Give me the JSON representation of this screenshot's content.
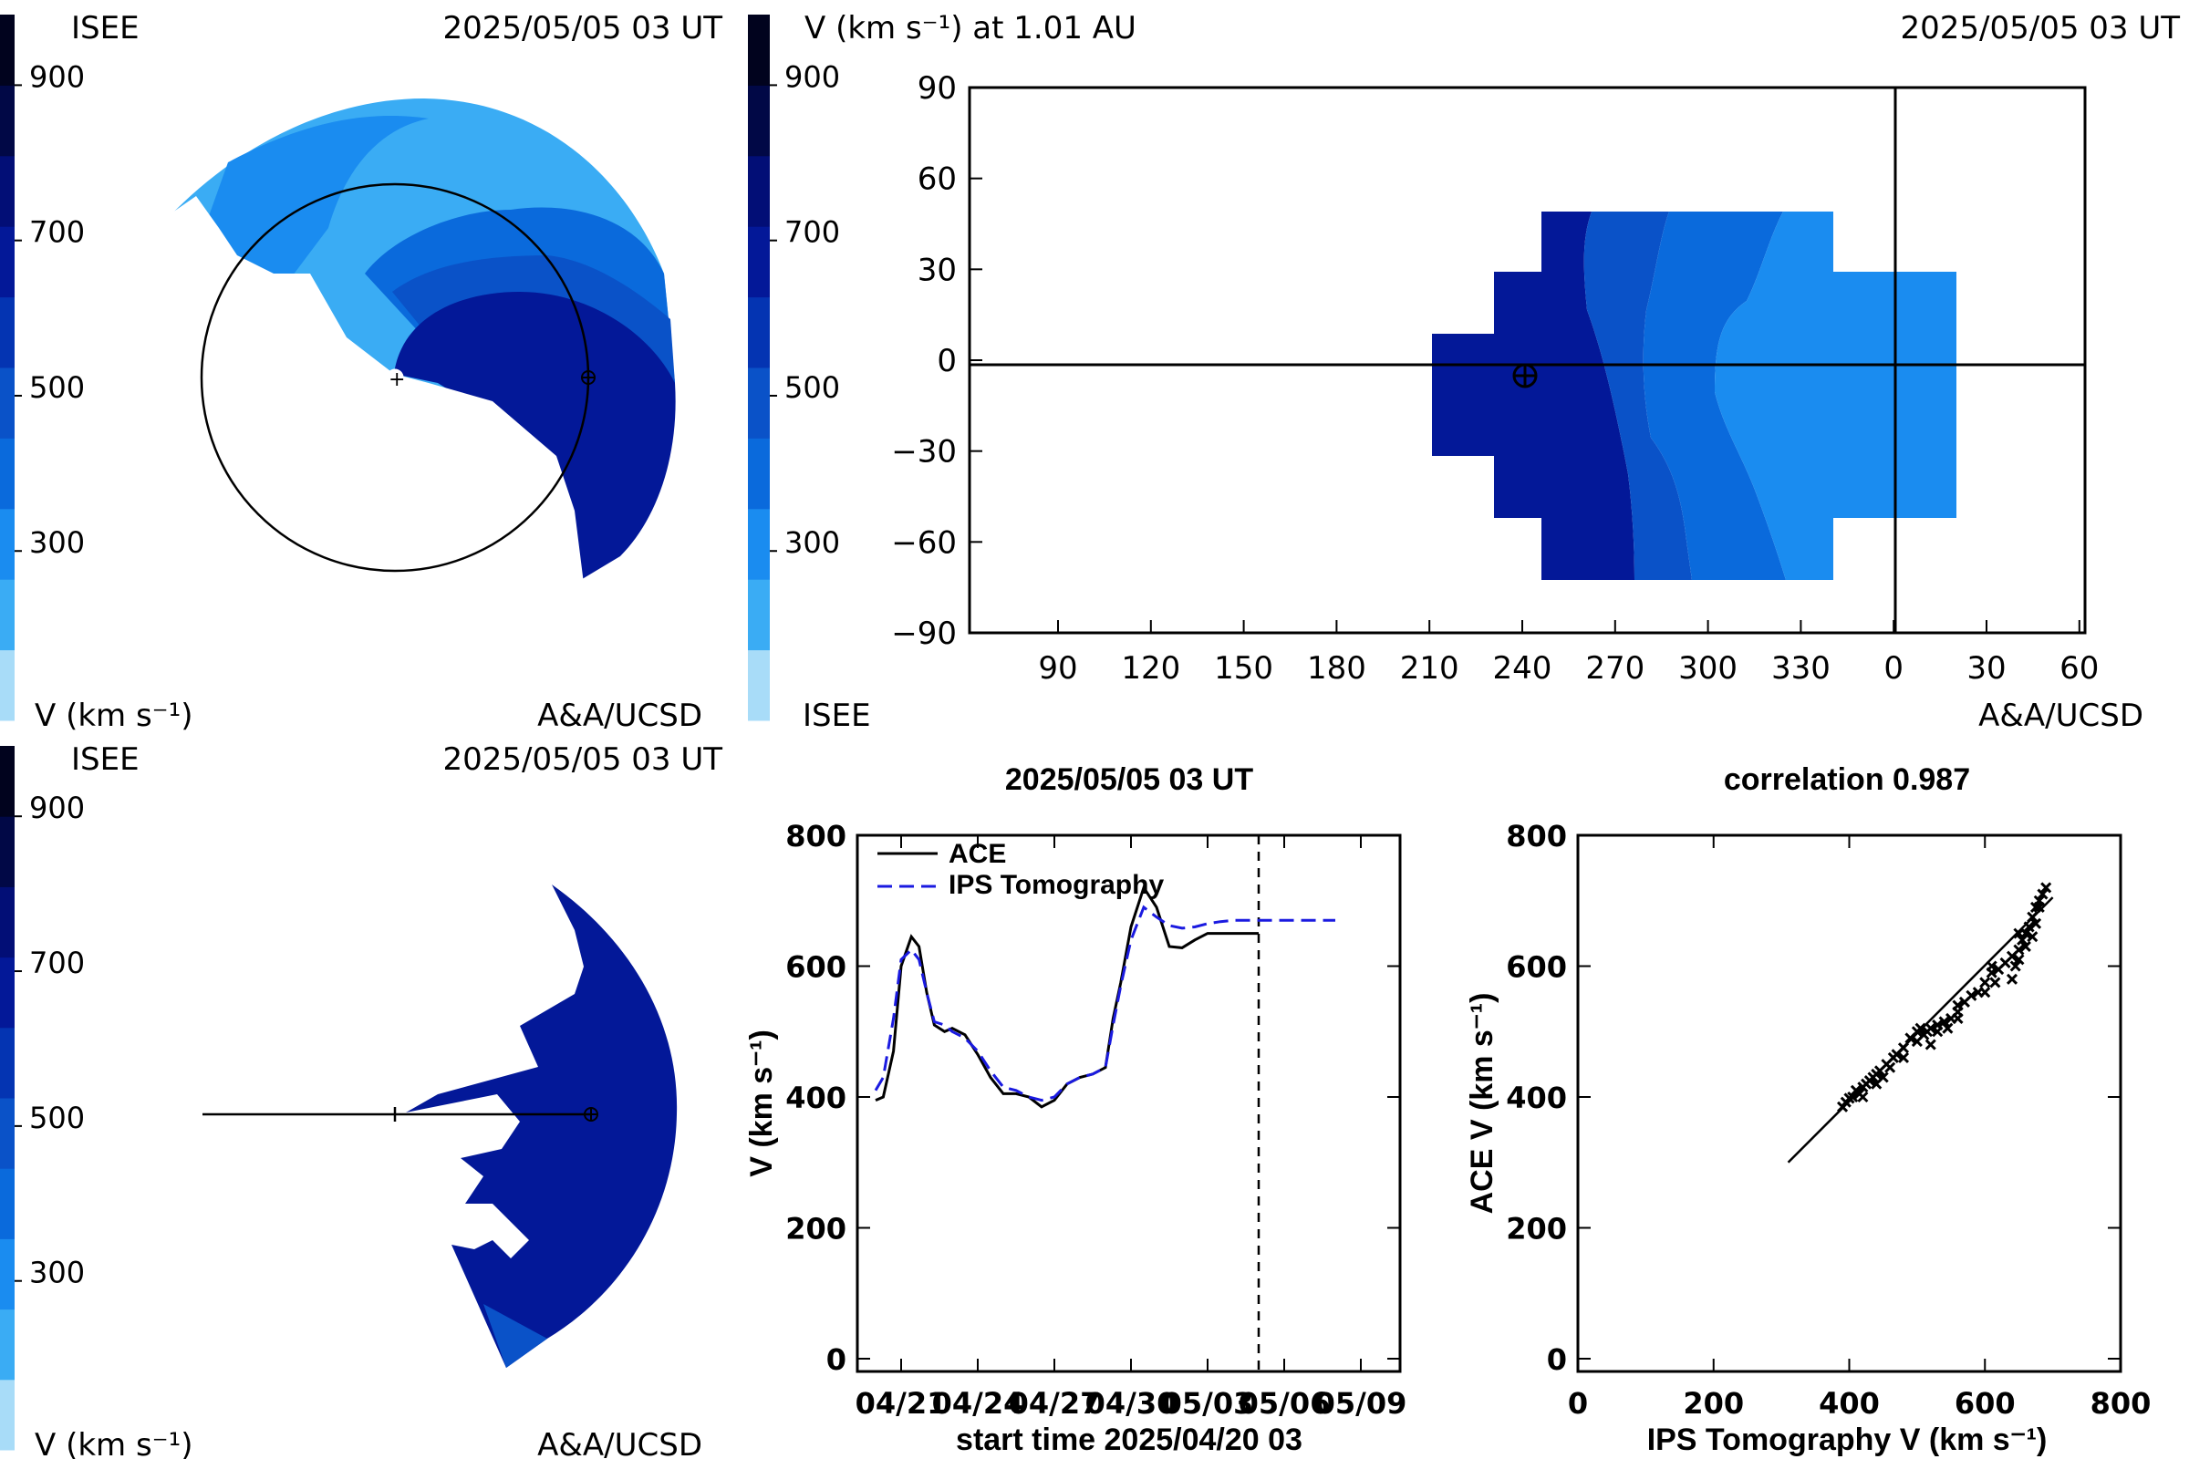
{
  "colorbar": {
    "ticks": [
      "900",
      "700",
      "500",
      "300"
    ],
    "colors": [
      "#a8dcf8",
      "#3aacf4",
      "#1a8cf0",
      "#0a6adc",
      "#0a52c8",
      "#0434b2",
      "#031898",
      "#020e76",
      "#010846",
      "#01031e"
    ]
  },
  "panel_tl": {
    "left_label": "ISEE",
    "datetime": "2025/05/05 03 UT",
    "unit_label": "V (km s⁻¹)",
    "credit": "A&A/UCSD"
  },
  "panel_bl": {
    "left_label": "ISEE",
    "datetime": "2025/05/05 03 UT",
    "unit_label": "V (km s⁻¹)",
    "credit": "A&A/UCSD"
  },
  "panel_map": {
    "title": "V (km s⁻¹) at 1.01 AU",
    "datetime": "2025/05/05 03 UT",
    "bottom_left": "ISEE",
    "credit": "A&A/UCSD",
    "y_ticks": [
      "90",
      "60",
      "30",
      "0",
      "−30",
      "−60",
      "−90"
    ],
    "x_ticks": [
      "90",
      "120",
      "150",
      "180",
      "210",
      "240",
      "270",
      "300",
      "330",
      "0",
      "30",
      "60"
    ]
  },
  "chart_data": [
    {
      "type": "line",
      "title": "2025/05/05 03 UT",
      "xlabel": "start time 2025/04/20 03",
      "ylabel": "V (km s⁻¹)",
      "x_ticks": [
        "04/21",
        "04/24",
        "04/27",
        "04/30",
        "05/03",
        "05/06",
        "05/09"
      ],
      "y_ticks": [
        "0",
        "200",
        "400",
        "600",
        "800"
      ],
      "ylim": [
        0,
        800
      ],
      "xlim_days": [
        0,
        20
      ],
      "current_time_day": 15.0,
      "legend": [
        "ACE",
        "IPS Tomography"
      ],
      "series": [
        {
          "name": "ACE",
          "x": [
            0,
            0.3,
            0.7,
            1.0,
            1.4,
            1.7,
            2.0,
            2.3,
            2.7,
            3.0,
            3.5,
            4.0,
            4.5,
            5.0,
            5.5,
            6.0,
            6.5,
            7.0,
            7.5,
            8.0,
            8.5,
            9.0,
            9.3,
            9.6,
            10.0,
            10.5,
            11.0,
            11.5,
            12.0,
            12.5,
            13.0,
            13.3,
            13.6,
            14.0,
            14.3,
            14.6,
            15.0
          ],
          "y": [
            395,
            400,
            470,
            600,
            645,
            630,
            560,
            510,
            500,
            505,
            495,
            465,
            430,
            405,
            405,
            400,
            385,
            395,
            420,
            430,
            435,
            445,
            520,
            575,
            660,
            720,
            690,
            630,
            628,
            640,
            650,
            650,
            650,
            650,
            650,
            650,
            650
          ]
        },
        {
          "name": "IPS Tomography",
          "x": [
            0,
            0.3,
            0.7,
            1.0,
            1.4,
            1.7,
            2.0,
            2.3,
            2.7,
            3.0,
            3.5,
            4.0,
            4.5,
            5.0,
            5.5,
            6.0,
            6.5,
            7.0,
            7.5,
            8.0,
            8.5,
            9.0,
            9.3,
            9.6,
            10.0,
            10.5,
            11.0,
            11.5,
            12.0,
            12.5,
            13.0,
            13.5,
            14.0,
            14.5,
            15.0,
            15.5,
            16.0,
            16.5,
            17.0,
            17.5,
            18.0
          ],
          "y": [
            410,
            430,
            520,
            610,
            625,
            610,
            560,
            515,
            510,
            500,
            490,
            470,
            440,
            415,
            410,
            400,
            395,
            400,
            420,
            430,
            435,
            445,
            510,
            570,
            640,
            690,
            675,
            662,
            658,
            660,
            665,
            668,
            670,
            670,
            670,
            670,
            670,
            670,
            670,
            670,
            670
          ]
        }
      ]
    },
    {
      "type": "scatter",
      "title": "correlation 0.987",
      "xlabel": "IPS Tomography V (km s⁻¹)",
      "ylabel": "ACE V (km s⁻¹)",
      "xlim": [
        0,
        800
      ],
      "ylim": [
        0,
        800
      ],
      "x_ticks": [
        "0",
        "200",
        "400",
        "600",
        "800"
      ],
      "y_ticks": [
        "0",
        "200",
        "400",
        "600",
        "800"
      ],
      "fit_line": {
        "x": [
          310,
          700
        ],
        "y": [
          300,
          705
        ]
      },
      "points": [
        [
          390,
          385
        ],
        [
          395,
          392
        ],
        [
          400,
          398
        ],
        [
          405,
          400
        ],
        [
          410,
          410
        ],
        [
          415,
          405
        ],
        [
          420,
          415
        ],
        [
          425,
          420
        ],
        [
          430,
          425
        ],
        [
          435,
          430
        ],
        [
          440,
          435
        ],
        [
          445,
          440
        ],
        [
          455,
          450
        ],
        [
          465,
          460
        ],
        [
          470,
          465
        ],
        [
          480,
          475
        ],
        [
          490,
          490
        ],
        [
          500,
          500
        ],
        [
          505,
          505
        ],
        [
          510,
          495
        ],
        [
          515,
          500
        ],
        [
          520,
          505
        ],
        [
          530,
          510
        ],
        [
          540,
          515
        ],
        [
          545,
          505
        ],
        [
          550,
          520
        ],
        [
          560,
          530
        ],
        [
          570,
          545
        ],
        [
          580,
          555
        ],
        [
          590,
          560
        ],
        [
          600,
          575
        ],
        [
          610,
          590
        ],
        [
          615,
          575
        ],
        [
          620,
          595
        ],
        [
          630,
          605
        ],
        [
          640,
          615
        ],
        [
          645,
          600
        ],
        [
          650,
          625
        ],
        [
          655,
          640
        ],
        [
          660,
          650
        ],
        [
          665,
          660
        ],
        [
          670,
          675
        ],
        [
          675,
          690
        ],
        [
          680,
          700
        ],
        [
          685,
          710
        ],
        [
          690,
          720
        ],
        [
          660,
          630
        ],
        [
          670,
          645
        ],
        [
          650,
          610
        ],
        [
          640,
          580
        ],
        [
          600,
          560
        ],
        [
          560,
          520
        ],
        [
          520,
          480
        ],
        [
          480,
          460
        ],
        [
          450,
          430
        ],
        [
          420,
          400
        ],
        [
          440,
          420
        ],
        [
          460,
          445
        ],
        [
          500,
          485
        ],
        [
          530,
          500
        ],
        [
          560,
          540
        ],
        [
          610,
          600
        ],
        [
          650,
          650
        ],
        [
          675,
          665
        ],
        [
          680,
          690
        ]
      ]
    }
  ]
}
